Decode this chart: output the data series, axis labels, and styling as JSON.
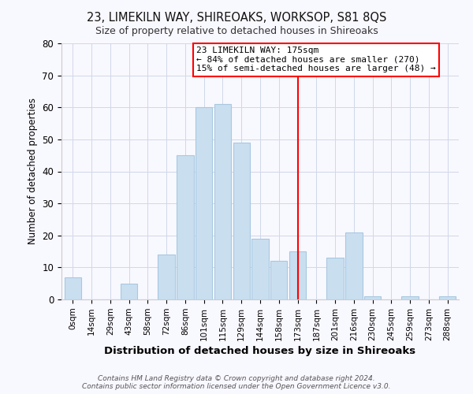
{
  "title": "23, LIMEKILN WAY, SHIREOAKS, WORKSOP, S81 8QS",
  "subtitle": "Size of property relative to detached houses in Shireoaks",
  "xlabel": "Distribution of detached houses by size in Shireoaks",
  "ylabel": "Number of detached properties",
  "bar_labels": [
    "0sqm",
    "14sqm",
    "29sqm",
    "43sqm",
    "58sqm",
    "72sqm",
    "86sqm",
    "101sqm",
    "115sqm",
    "129sqm",
    "144sqm",
    "158sqm",
    "173sqm",
    "187sqm",
    "201sqm",
    "216sqm",
    "230sqm",
    "245sqm",
    "259sqm",
    "273sqm",
    "288sqm"
  ],
  "bar_values": [
    7,
    0,
    0,
    5,
    0,
    14,
    45,
    60,
    61,
    49,
    19,
    12,
    15,
    0,
    13,
    21,
    1,
    0,
    1,
    0,
    1
  ],
  "bar_color": "#c9dff0",
  "bar_edge_color": "#a8c8e0",
  "vline_x": 12,
  "vline_color": "red",
  "annotation_title": "23 LIMEKILN WAY: 175sqm",
  "annotation_line1": "← 84% of detached houses are smaller (270)",
  "annotation_line2": "15% of semi-detached houses are larger (48) →",
  "annotation_box_color": "white",
  "annotation_box_edge": "red",
  "ylim": [
    0,
    80
  ],
  "yticks": [
    0,
    10,
    20,
    30,
    40,
    50,
    60,
    70,
    80
  ],
  "footer1": "Contains HM Land Registry data © Crown copyright and database right 2024.",
  "footer2": "Contains public sector information licensed under the Open Government Licence v3.0.",
  "bg_color": "#f8f8ff",
  "grid_color": "#d0d8e8"
}
